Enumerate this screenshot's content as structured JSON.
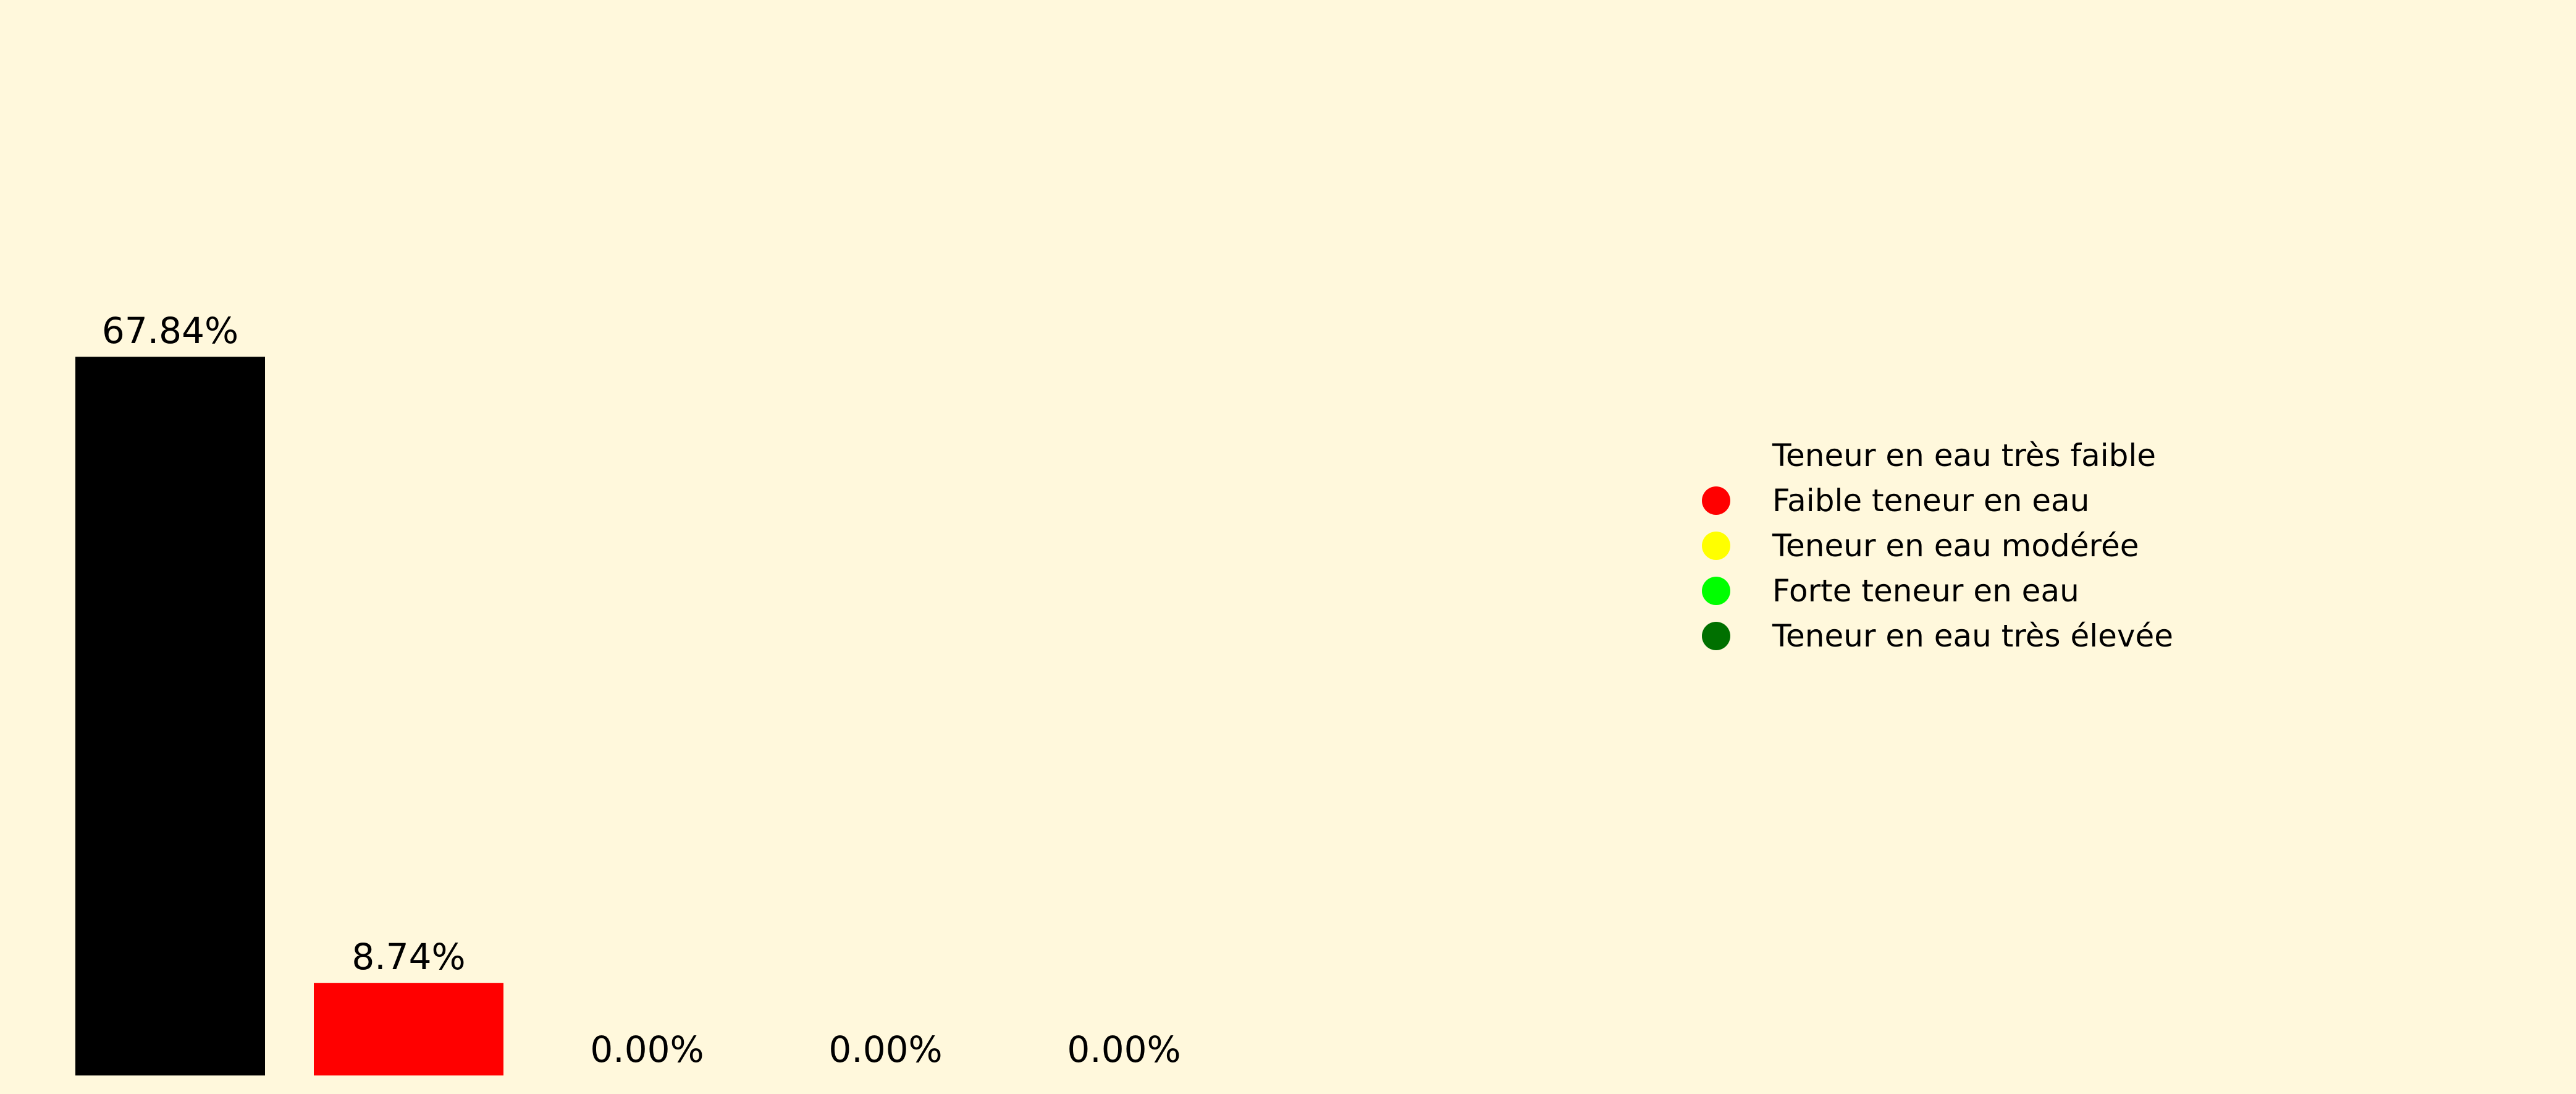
{
  "chart_data": {
    "type": "bar",
    "categories": [
      "Teneur en eau très faible",
      "Faible teneur en eau",
      "Teneur en eau modérée",
      "Forte teneur en eau",
      "Teneur en eau très élevée"
    ],
    "values": [
      67.84,
      8.74,
      0.0,
      0.0,
      0.0
    ],
    "data_labels": [
      "67.84%",
      "8.74%",
      "0.00%",
      "0.00%",
      "0.00%"
    ],
    "colors": [
      "#000000",
      "#ff0000",
      "#ffff00",
      "#00ff00",
      "#007000"
    ],
    "ylim": [
      0,
      100
    ],
    "grid": false,
    "legend_position": "right",
    "background": "#fff8dc"
  }
}
